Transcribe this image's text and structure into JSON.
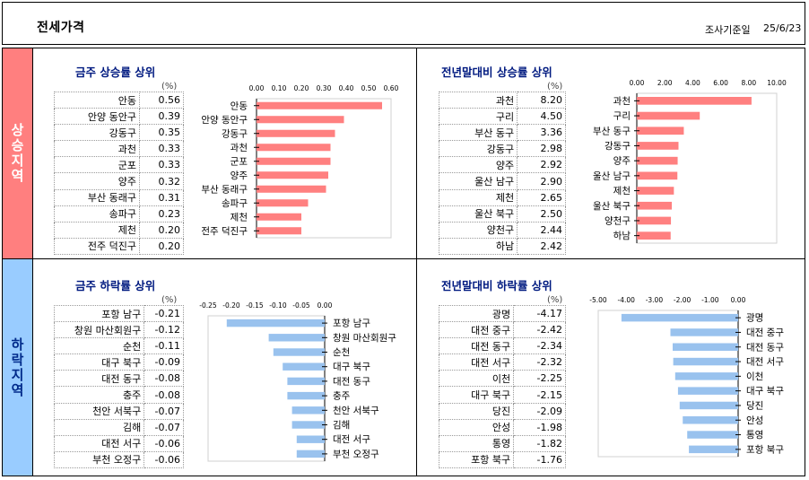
{
  "header": {
    "title": "전세가격",
    "basis_label": "조사기준일",
    "date": "25/6/23"
  },
  "sides": {
    "up": "상승지역",
    "down": "하락지역"
  },
  "panels": [
    {
      "title": "금주 상승률 상위",
      "unit": "(%)",
      "items": [
        {
          "name": "안동",
          "value": "0.56"
        },
        {
          "name": "안양 동안구",
          "value": "0.39"
        },
        {
          "name": "강동구",
          "value": "0.35"
        },
        {
          "name": "과천",
          "value": "0.33"
        },
        {
          "name": "군포",
          "value": "0.33"
        },
        {
          "name": "양주",
          "value": "0.32"
        },
        {
          "name": "부산 동래구",
          "value": "0.31"
        },
        {
          "name": "송파구",
          "value": "0.23"
        },
        {
          "name": "제천",
          "value": "0.20"
        },
        {
          "name": "전주 덕진구",
          "value": "0.20"
        }
      ]
    },
    {
      "title": "전년말대비 상승률 상위",
      "unit": "(%)",
      "items": [
        {
          "name": "과천",
          "value": "8.20"
        },
        {
          "name": "구리",
          "value": "4.50"
        },
        {
          "name": "부산 동구",
          "value": "3.36"
        },
        {
          "name": "강동구",
          "value": "2.98"
        },
        {
          "name": "양주",
          "value": "2.92"
        },
        {
          "name": "울산 남구",
          "value": "2.90"
        },
        {
          "name": "제천",
          "value": "2.65"
        },
        {
          "name": "울산 북구",
          "value": "2.50"
        },
        {
          "name": "양천구",
          "value": "2.44"
        },
        {
          "name": "하남",
          "value": "2.42"
        }
      ]
    },
    {
      "title": "금주 하락률 상위",
      "unit": "(%)",
      "items": [
        {
          "name": "포항 남구",
          "value": "-0.21"
        },
        {
          "name": "창원 마산회원구",
          "value": "-0.12"
        },
        {
          "name": "순천",
          "value": "-0.11"
        },
        {
          "name": "대구 북구",
          "value": "-0.09"
        },
        {
          "name": "대전 동구",
          "value": "-0.08"
        },
        {
          "name": "충주",
          "value": "-0.08"
        },
        {
          "name": "천안 서북구",
          "value": "-0.07"
        },
        {
          "name": "김해",
          "value": "-0.07"
        },
        {
          "name": "대전 서구",
          "value": "-0.06"
        },
        {
          "name": "부천 오정구",
          "value": "-0.06"
        }
      ]
    },
    {
      "title": "전년말대비 하락률 상위",
      "unit": "(%)",
      "items": [
        {
          "name": "광명",
          "value": "-4.17"
        },
        {
          "name": "대전 중구",
          "value": "-2.42"
        },
        {
          "name": "대전 동구",
          "value": "-2.34"
        },
        {
          "name": "대전 서구",
          "value": "-2.32"
        },
        {
          "name": "이천",
          "value": "-2.25"
        },
        {
          "name": "대구 북구",
          "value": "-2.15"
        },
        {
          "name": "당진",
          "value": "-2.09"
        },
        {
          "name": "안성",
          "value": "-1.98"
        },
        {
          "name": "통영",
          "value": "-1.82"
        },
        {
          "name": "포항 북구",
          "value": "-1.76"
        }
      ]
    }
  ],
  "colors": {
    "up_bar": "#ff8080",
    "down_bar": "#99c2ee",
    "up_side": "#ff7f7f",
    "down_side": "#99ccff"
  },
  "chart_data": [
    {
      "type": "bar",
      "orientation": "horizontal",
      "categories": [
        "안동",
        "안양 동안구",
        "강동구",
        "과천",
        "군포",
        "양주",
        "부산 동래구",
        "송파구",
        "제천",
        "전주 덕진구"
      ],
      "values": [
        0.56,
        0.39,
        0.35,
        0.33,
        0.33,
        0.32,
        0.31,
        0.23,
        0.2,
        0.2
      ],
      "xlim": [
        0,
        0.6
      ],
      "ticks": [
        "0.00",
        "0.10",
        "0.20",
        "0.30",
        "0.40",
        "0.50",
        "0.60"
      ],
      "axis_position": "top",
      "category_labels": "left",
      "color": "#ff8080"
    },
    {
      "type": "bar",
      "orientation": "horizontal",
      "categories": [
        "과천",
        "구리",
        "부산 동구",
        "강동구",
        "양주",
        "울산 남구",
        "제천",
        "울산 북구",
        "양천구",
        "하남"
      ],
      "values": [
        8.2,
        4.5,
        3.36,
        2.98,
        2.92,
        2.9,
        2.65,
        2.5,
        2.44,
        2.42
      ],
      "xlim": [
        0,
        10
      ],
      "ticks": [
        "0.00",
        "2.00",
        "4.00",
        "6.00",
        "8.00",
        "10.00"
      ],
      "axis_position": "top",
      "category_labels": "left",
      "color": "#ff8080"
    },
    {
      "type": "bar",
      "orientation": "horizontal",
      "categories": [
        "포항 남구",
        "창원 마산회원구",
        "순천",
        "대구 북구",
        "대전 동구",
        "충주",
        "천안 서북구",
        "김해",
        "대전 서구",
        "부천 오정구"
      ],
      "values": [
        -0.21,
        -0.12,
        -0.11,
        -0.09,
        -0.08,
        -0.08,
        -0.07,
        -0.07,
        -0.06,
        -0.06
      ],
      "xlim": [
        -0.25,
        0
      ],
      "ticks": [
        "-0.25",
        "-0.20",
        "-0.15",
        "-0.10",
        "-0.05",
        "0.00"
      ],
      "axis_position": "top",
      "category_labels": "right",
      "color": "#99c2ee"
    },
    {
      "type": "bar",
      "orientation": "horizontal",
      "categories": [
        "광명",
        "대전 중구",
        "대전 동구",
        "대전 서구",
        "이천",
        "대구 북구",
        "당진",
        "안성",
        "통영",
        "포항 북구"
      ],
      "values": [
        -4.17,
        -2.42,
        -2.34,
        -2.32,
        -2.25,
        -2.15,
        -2.09,
        -1.98,
        -1.82,
        -1.76
      ],
      "xlim": [
        -5,
        0
      ],
      "ticks": [
        "-5.00",
        "-4.00",
        "-3.00",
        "-2.00",
        "-1.00",
        "0.00"
      ],
      "axis_position": "top",
      "category_labels": "right",
      "color": "#99c2ee"
    }
  ]
}
